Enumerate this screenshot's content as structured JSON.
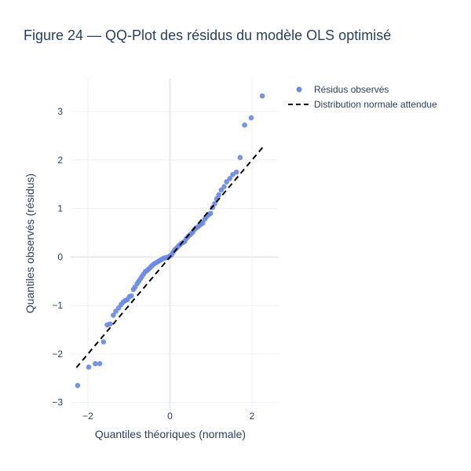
{
  "chart_data": {
    "type": "scatter",
    "title": "Figure 24 — QQ-Plot des résidus du modèle OLS optimisé",
    "xlabel": "Quantiles théoriques (normale)",
    "ylabel": "Quantiles observés (résidus)",
    "xlim": [
      -2.42,
      2.65
    ],
    "ylim": [
      -3.15,
      3.68
    ],
    "x_ticks": [
      -2,
      0,
      2
    ],
    "y_ticks": [
      -3,
      -2,
      -1,
      0,
      1,
      2,
      3
    ],
    "x_tick_labels": [
      "−2",
      "0",
      "2"
    ],
    "y_tick_labels": [
      "−3",
      "−2",
      "−1",
      "0",
      "1",
      "2",
      "3"
    ],
    "grid": true,
    "legend_position": "top-right, outside plot",
    "colors": {
      "points": "#6a8ae6",
      "reference_line": "#000000",
      "grid": "#ebf0f8",
      "zero_line": "#e6e9ef",
      "text": "#2a3f5f"
    },
    "series": [
      {
        "name": "Résidus observés",
        "mode": "markers",
        "x": [
          -2.25,
          -1.98,
          -1.82,
          -1.71,
          -1.62,
          -1.53,
          -1.46,
          -1.38,
          -1.32,
          -1.25,
          -1.19,
          -1.14,
          -1.09,
          -1.04,
          -0.99,
          -0.94,
          -0.89,
          -0.85,
          -0.8,
          -0.76,
          -0.72,
          -0.68,
          -0.64,
          -0.6,
          -0.56,
          -0.52,
          -0.48,
          -0.44,
          -0.4,
          -0.36,
          -0.32,
          -0.28,
          -0.24,
          -0.2,
          -0.16,
          -0.12,
          -0.08,
          -0.04,
          0.0,
          0.04,
          0.08,
          0.12,
          0.16,
          0.2,
          0.24,
          0.28,
          0.32,
          0.36,
          0.4,
          0.44,
          0.48,
          0.52,
          0.56,
          0.6,
          0.64,
          0.68,
          0.72,
          0.76,
          0.8,
          0.85,
          0.89,
          0.94,
          0.99,
          1.04,
          1.09,
          1.14,
          1.19,
          1.25,
          1.32,
          1.38,
          1.46,
          1.53,
          1.62,
          1.71,
          1.82,
          1.98,
          2.25
        ],
        "y": [
          -2.65,
          -2.27,
          -2.2,
          -2.2,
          -1.75,
          -1.4,
          -1.38,
          -1.2,
          -1.12,
          -1.05,
          -0.98,
          -0.93,
          -0.9,
          -0.88,
          -0.82,
          -0.8,
          -0.67,
          -0.62,
          -0.55,
          -0.5,
          -0.45,
          -0.4,
          -0.35,
          -0.3,
          -0.28,
          -0.25,
          -0.22,
          -0.18,
          -0.15,
          -0.13,
          -0.11,
          -0.09,
          -0.07,
          -0.05,
          -0.03,
          -0.02,
          -0.01,
          0.0,
          0.02,
          0.05,
          0.1,
          0.15,
          0.18,
          0.22,
          0.25,
          0.28,
          0.3,
          0.32,
          0.38,
          0.42,
          0.45,
          0.48,
          0.52,
          0.57,
          0.6,
          0.62,
          0.65,
          0.68,
          0.7,
          0.78,
          0.83,
          0.87,
          0.9,
          1.02,
          1.1,
          1.2,
          1.28,
          1.38,
          1.45,
          1.55,
          1.62,
          1.7,
          1.75,
          2.05,
          2.72,
          2.87,
          3.32
        ]
      },
      {
        "name": "Distribution normale attendue",
        "mode": "lines",
        "line_style": "dash",
        "x": [
          -2.28,
          2.28
        ],
        "y": [
          -2.28,
          2.28
        ]
      }
    ]
  }
}
